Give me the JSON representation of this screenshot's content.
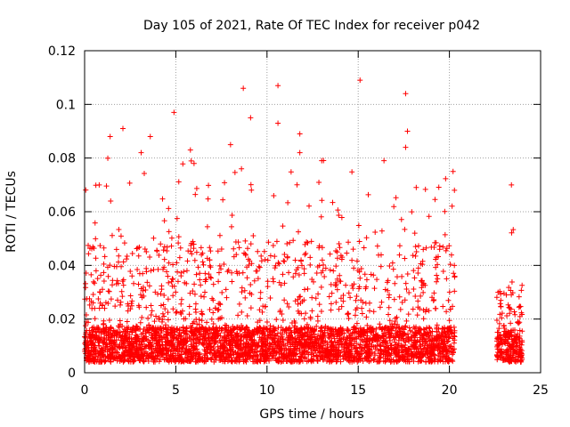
{
  "chart_data": {
    "type": "scatter",
    "title": "Day 105 of 2021, Rate Of TEC Index for receiver p042",
    "xlabel": "GPS time / hours",
    "ylabel": "ROTI / TECUs",
    "xlim": [
      0,
      25
    ],
    "ylim": [
      0,
      0.12
    ],
    "xticks": [
      "0",
      "5",
      "10",
      "15",
      "20",
      "25"
    ],
    "yticks": [
      "0",
      "0.02",
      "0.04",
      "0.06",
      "0.08",
      "0.1",
      "0.12"
    ],
    "grid": true,
    "marker": "+",
    "color": "#ff0000",
    "density": [
      {
        "x": [
          0.0,
          20.3
        ],
        "base": 0.013,
        "spread": 0.045,
        "peak": 0.07
      },
      {
        "x": [
          22.6,
          24.0
        ],
        "base": 0.012,
        "spread": 0.03,
        "peak": 0.045
      }
    ],
    "highlights": [
      {
        "x": 15.1,
        "y": 0.109
      },
      {
        "x": 10.6,
        "y": 0.107
      },
      {
        "x": 8.7,
        "y": 0.106
      },
      {
        "x": 17.6,
        "y": 0.104
      },
      {
        "x": 4.9,
        "y": 0.097
      },
      {
        "x": 9.1,
        "y": 0.095
      },
      {
        "x": 10.6,
        "y": 0.093
      },
      {
        "x": 2.1,
        "y": 0.091
      },
      {
        "x": 17.7,
        "y": 0.09
      },
      {
        "x": 11.8,
        "y": 0.089
      },
      {
        "x": 1.4,
        "y": 0.088
      },
      {
        "x": 3.6,
        "y": 0.088
      },
      {
        "x": 8.0,
        "y": 0.085
      },
      {
        "x": 17.6,
        "y": 0.084
      },
      {
        "x": 5.8,
        "y": 0.083
      },
      {
        "x": 3.1,
        "y": 0.082
      },
      {
        "x": 11.8,
        "y": 0.082
      },
      {
        "x": 20.2,
        "y": 0.075
      },
      {
        "x": 23.4,
        "y": 0.07
      },
      {
        "x": 0.8,
        "y": 0.07
      },
      {
        "x": 13.0,
        "y": 0.079
      },
      {
        "x": 8.6,
        "y": 0.076
      },
      {
        "x": 6.0,
        "y": 0.078
      }
    ]
  }
}
